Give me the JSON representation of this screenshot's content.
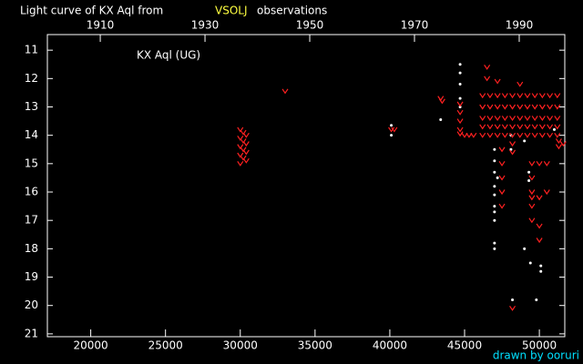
{
  "chart_data": {
    "type": "scatter",
    "title": "Light curve of KX Aql from",
    "title_highlight": "VSOLJ",
    "title_suffix": "observations",
    "annotation": "KX Aql (UG)",
    "credit": "drawn by ooruri",
    "xlim": [
      17100,
      51700
    ],
    "xticks": [
      20000,
      25000,
      30000,
      35000,
      40000,
      45000,
      50000
    ],
    "x2lim": [
      1899.9,
      1998.7
    ],
    "x2ticks": [
      1910,
      1930,
      1950,
      1970,
      1990
    ],
    "ylim": [
      10.45,
      21.1
    ],
    "y_inverted": true,
    "yticks": [
      11,
      12,
      13,
      14,
      15,
      16,
      17,
      18,
      19,
      20,
      21
    ],
    "series": [
      {
        "color": "#ffffff",
        "marker": "dot",
        "x": [
          40100,
          40100,
          43400,
          44700,
          44700,
          44700,
          44700,
          44700,
          47000,
          47000,
          47000,
          47000,
          47000,
          47000,
          47000,
          47000,
          47000,
          47000,
          47200,
          48100,
          48100,
          48200,
          49000,
          49300,
          49300,
          49000,
          49400,
          49800,
          50100,
          50100,
          51000
        ],
        "values": [
          13.65,
          14.0,
          13.45,
          11.5,
          11.8,
          12.2,
          12.7,
          13.0,
          14.5,
          14.9,
          15.3,
          15.8,
          16.1,
          16.5,
          16.7,
          17.0,
          17.8,
          18.0,
          15.5,
          14.0,
          14.5,
          19.8,
          14.2,
          15.3,
          15.6,
          18.0,
          18.5,
          19.8,
          18.6,
          18.8,
          13.8
        ]
      },
      {
        "color": "#ff2020",
        "marker": "v",
        "x": [
          30000,
          30200,
          30400,
          30000,
          30200,
          30400,
          30000,
          30200,
          30400,
          30000,
          30200,
          30400,
          30000,
          33000,
          40100,
          40300,
          43400,
          43500,
          44700,
          44700,
          44700,
          44700,
          44700,
          45000,
          45300,
          45600,
          46500,
          46500,
          47200,
          48700,
          46200,
          46200,
          46200,
          46200,
          46200,
          46700,
          46700,
          46700,
          46700,
          46700,
          47200,
          47200,
          47200,
          47200,
          47200,
          47700,
          47700,
          47700,
          47700,
          47700,
          48200,
          48200,
          48200,
          48200,
          48200,
          48700,
          48700,
          48700,
          48700,
          48700,
          49200,
          49200,
          49200,
          49200,
          49200,
          49700,
          49700,
          49700,
          49700,
          49700,
          50200,
          50200,
          50200,
          50200,
          50200,
          50700,
          50700,
          50700,
          50700,
          50700,
          51200,
          51200,
          51200,
          51200,
          51200,
          47500,
          47500,
          47500,
          47500,
          47500,
          48200,
          48200,
          49500,
          49500,
          49500,
          49500,
          49500,
          49500,
          50000,
          50000,
          50000,
          50000,
          50500,
          50500,
          51300,
          51300,
          51600,
          48200
        ],
        "values": [
          13.8,
          13.9,
          14.0,
          14.1,
          14.2,
          14.3,
          14.4,
          14.5,
          14.6,
          14.7,
          14.8,
          14.9,
          15.0,
          12.45,
          13.8,
          13.8,
          12.7,
          12.8,
          12.9,
          13.2,
          13.5,
          13.8,
          13.95,
          14.0,
          14.0,
          14.0,
          11.6,
          12.0,
          12.1,
          12.2,
          12.6,
          13.0,
          13.4,
          13.7,
          14.0,
          12.6,
          13.0,
          13.4,
          13.7,
          14.0,
          12.6,
          13.0,
          13.4,
          13.7,
          14.0,
          12.6,
          13.0,
          13.4,
          13.7,
          14.0,
          12.6,
          13.0,
          13.4,
          13.7,
          14.0,
          12.6,
          13.0,
          13.4,
          13.7,
          14.0,
          12.6,
          13.0,
          13.4,
          13.7,
          14.0,
          12.6,
          13.0,
          13.4,
          13.7,
          14.0,
          12.6,
          13.0,
          13.4,
          13.7,
          14.0,
          12.6,
          13.0,
          13.4,
          13.7,
          14.0,
          12.6,
          13.0,
          13.4,
          13.7,
          14.0,
          14.5,
          15.0,
          15.5,
          16.0,
          16.5,
          14.3,
          14.6,
          15.0,
          15.5,
          16.0,
          16.2,
          16.5,
          17.0,
          15.0,
          16.2,
          17.2,
          17.7,
          15.0,
          16.0,
          14.2,
          14.4,
          14.3,
          20.1
        ]
      }
    ]
  }
}
